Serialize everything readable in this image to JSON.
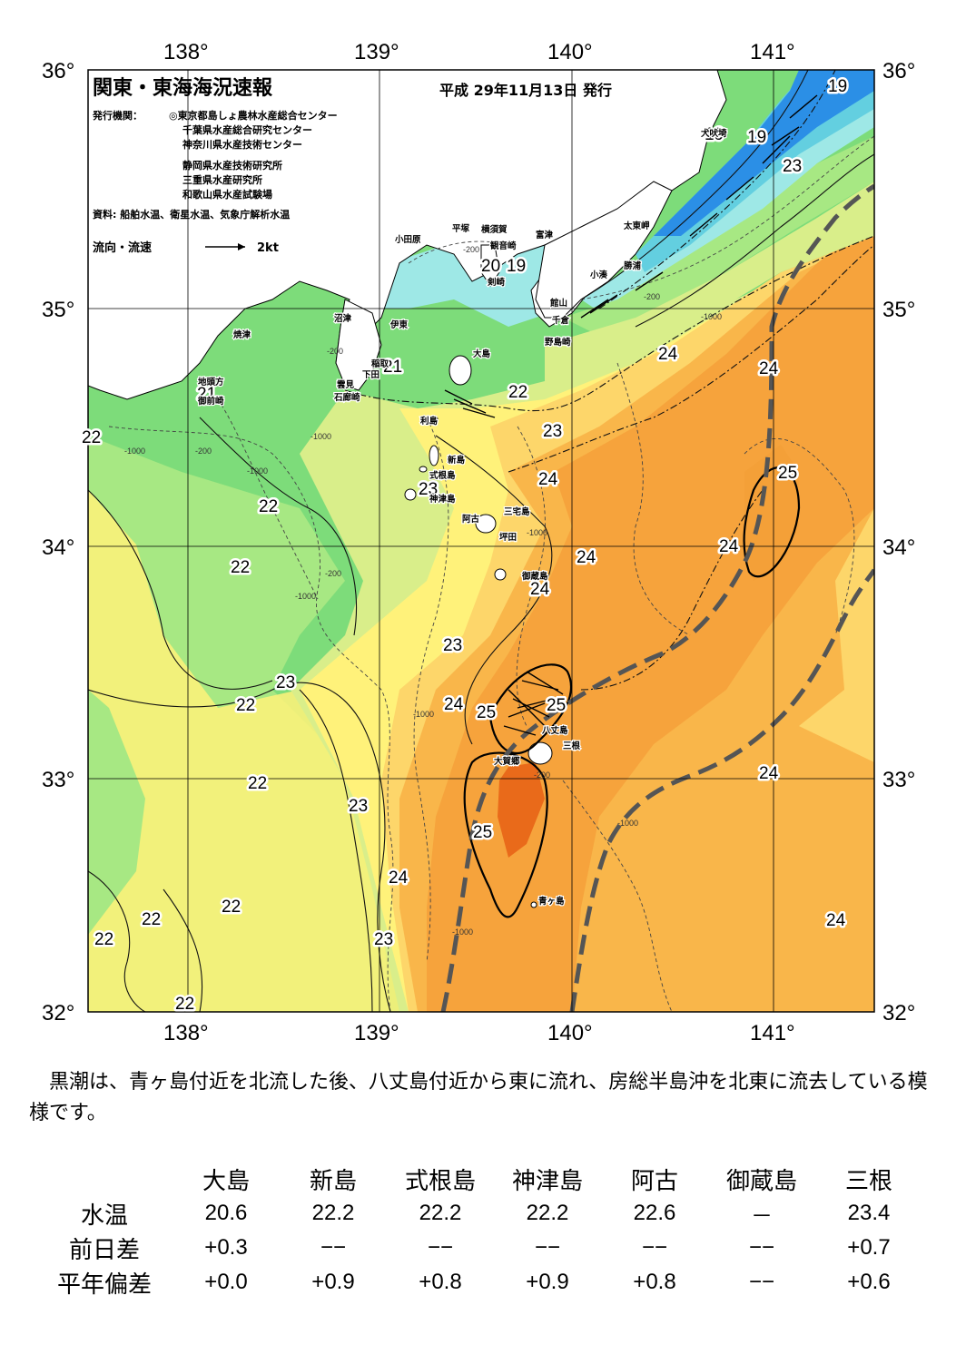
{
  "header": {
    "title": "関東・東海海況速報",
    "issue_date": "平成 29年11月13日 発行",
    "issuers_label": "発行機関：",
    "issuers": [
      "◎東京都島しょ農林水産総合センター",
      "千葉県水産総合研究センター",
      "神奈川県水産技術センター",
      "静岡県水産技術研究所",
      "三重県水産研究所",
      "和歌山県水産試験場"
    ],
    "sources": "資料: 船舶水温、衛星水温、気象庁解析水温",
    "legend_label": "流向・流速",
    "legend_scale": "2kt"
  },
  "axes": {
    "lon_labels": [
      "138°",
      "139°",
      "140°",
      "141°"
    ],
    "lat_labels": [
      "36°",
      "35°",
      "34°",
      "33°",
      "32°"
    ]
  },
  "colors": {
    "deep_blue": "#2b8fe6",
    "cyan": "#63cfe0",
    "light_cyan": "#9ee8e6",
    "green": "#7ddc7a",
    "light_green": "#a7e883",
    "yellow_green": "#d9ee8a",
    "yellow": "#fff27a",
    "light_orange": "#fdd66a",
    "orange": "#f9b64a",
    "dark_orange": "#f6a33c",
    "red_orange": "#e96a1a",
    "kuroshio_axis": "#555555"
  },
  "isotherm_labels": [
    "19",
    "19",
    "19",
    "23",
    "20",
    "19",
    "24",
    "24",
    "22",
    "21",
    "21",
    "23",
    "22",
    "24",
    "25",
    "22",
    "24",
    "23",
    "24",
    "22",
    "24",
    "23",
    "23",
    "22",
    "24",
    "25",
    "25",
    "22",
    "24",
    "22",
    "23",
    "25",
    "24",
    "22",
    "22",
    "22",
    "23",
    "24",
    "22"
  ],
  "place_names": [
    "犬吠埼",
    "太東岬",
    "勝浦",
    "小湊",
    "富津",
    "館山",
    "千倉",
    "野島崎",
    "横須賀",
    "観音崎",
    "平塚",
    "剣崎",
    "小田原",
    "沼津",
    "伊東",
    "稲取",
    "下田",
    "雲見",
    "石廊崎",
    "焼津",
    "地頭方",
    "御前崎",
    "大島",
    "利島",
    "新島",
    "式根島",
    "神津島",
    "三宅島",
    "阿古",
    "坪田",
    "御蔵島",
    "八丈島",
    "三根",
    "大賀郷",
    "青ヶ島"
  ],
  "depth_labels": [
    "-200",
    "-1000"
  ],
  "summary": "黒潮は、青ヶ島付近を北流した後、八丈島付近から東に流れ、房総半島沖を北東に流去している模様です。",
  "table": {
    "columns": [
      "大島",
      "新島",
      "式根島",
      "神津島",
      "阿古",
      "御蔵島",
      "三根"
    ],
    "rows": [
      {
        "label": "水温",
        "values": [
          "20.6",
          "22.2",
          "22.2",
          "22.2",
          "22.6",
          "－",
          "23.4"
        ]
      },
      {
        "label": "前日差",
        "values": [
          "+0.3",
          "−−",
          "−−",
          "−−",
          "−−",
          "−−",
          "+0.7"
        ]
      },
      {
        "label": "平年偏差",
        "values": [
          "+0.0",
          "+0.9",
          "+0.8",
          "+0.9",
          "+0.8",
          "−−",
          "+0.6"
        ]
      }
    ]
  }
}
